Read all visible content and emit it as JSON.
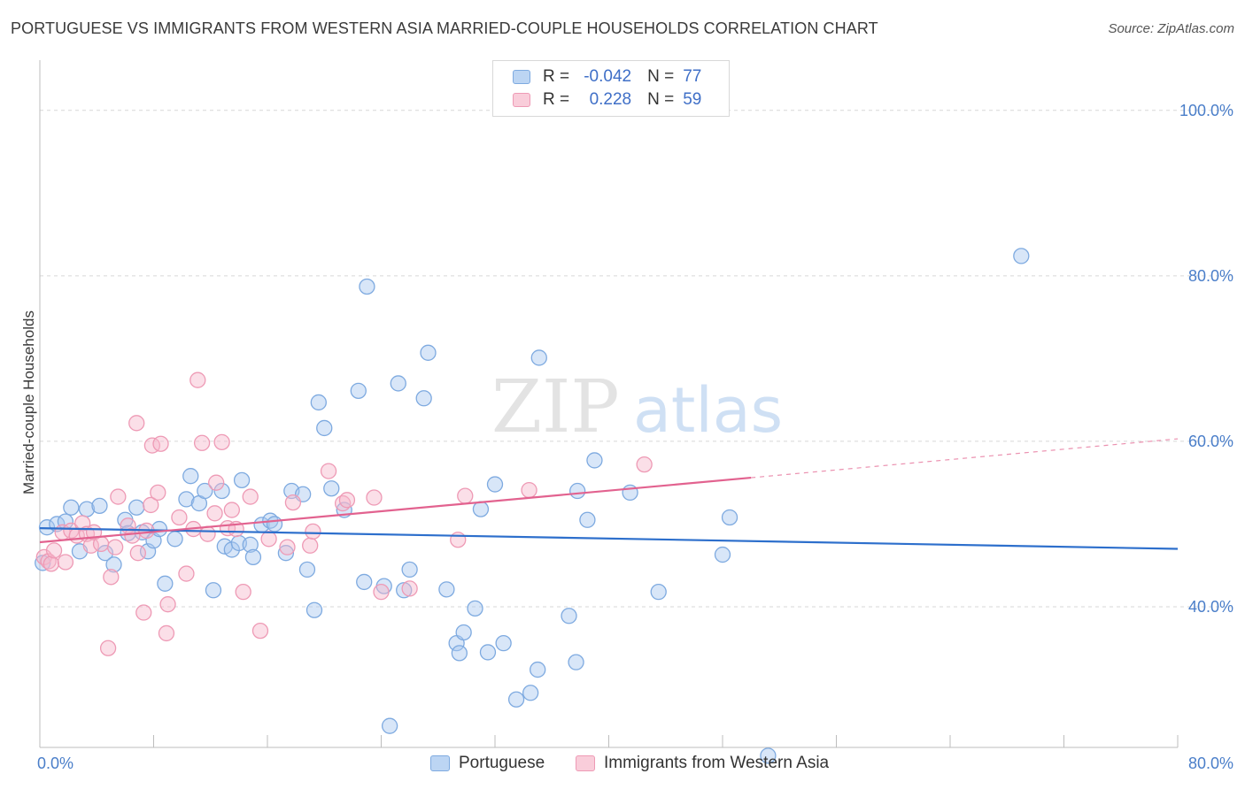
{
  "title": "PORTUGUESE VS IMMIGRANTS FROM WESTERN ASIA MARRIED-COUPLE HOUSEHOLDS CORRELATION CHART",
  "source": "Source: ZipAtlas.com",
  "watermark": {
    "zip": "ZIP",
    "atlas": "atlas"
  },
  "legend_top": {
    "rows": [
      {
        "r_label": "R =",
        "r_value": "-0.042",
        "n_label": "N =",
        "n_value": "77"
      },
      {
        "r_label": "R =",
        "r_value": "0.228",
        "n_label": "N =",
        "n_value": "59"
      }
    ]
  },
  "legend_bottom": {
    "items": [
      {
        "label": "Portuguese"
      },
      {
        "label": "Immigrants from Western Asia"
      }
    ]
  },
  "colors": {
    "blue_fill": "#a9c8ef",
    "blue_stroke": "#7eaae0",
    "blue_line": "#2d6fcc",
    "pink_fill": "#f6b7cb",
    "pink_stroke": "#ee9ab5",
    "pink_line": "#e2628f",
    "grid": "#d7d7d7",
    "axis_text": "#4a7ec9"
  },
  "chart_data": {
    "type": "scatter",
    "title": "PORTUGUESE VS IMMIGRANTS FROM WESTERN ASIA MARRIED-COUPLE HOUSEHOLDS CORRELATION CHART",
    "xlabel": "",
    "ylabel": "Married-couple Households",
    "xlim": [
      0,
      80
    ],
    "ylim": [
      23,
      105
    ],
    "x_tick_labels": [
      "0.0%",
      "80.0%"
    ],
    "y_ticks": [
      40,
      60,
      80,
      100
    ],
    "y_tick_labels": [
      "40.0%",
      "60.0%",
      "80.0%",
      "100.0%"
    ],
    "grid": true,
    "legend_position": "bottom",
    "series": [
      {
        "name": "Portuguese",
        "r": -0.042,
        "n": 77,
        "trend": {
          "x": [
            0,
            80
          ],
          "y": [
            49.5,
            47.0
          ]
        },
        "points": [
          [
            0.2,
            45.3
          ],
          [
            0.5,
            49.6
          ],
          [
            1.2,
            50
          ],
          [
            1.8,
            50.3
          ],
          [
            2.2,
            52
          ],
          [
            2.8,
            46.7
          ],
          [
            3.3,
            51.8
          ],
          [
            4.2,
            52.2
          ],
          [
            4.6,
            46.5
          ],
          [
            5.2,
            45.1
          ],
          [
            6,
            50.5
          ],
          [
            6.2,
            48.9
          ],
          [
            6.8,
            52
          ],
          [
            7.2,
            49
          ],
          [
            7.6,
            46.7
          ],
          [
            8,
            48
          ],
          [
            8.4,
            49.4
          ],
          [
            8.8,
            42.8
          ],
          [
            9.5,
            48.2
          ],
          [
            10.3,
            53
          ],
          [
            10.6,
            55.8
          ],
          [
            11.2,
            52.5
          ],
          [
            11.6,
            54
          ],
          [
            12.2,
            42
          ],
          [
            12.8,
            54
          ],
          [
            13,
            47.3
          ],
          [
            13.5,
            46.9
          ],
          [
            14,
            47.7
          ],
          [
            14.2,
            55.3
          ],
          [
            14.8,
            47.5
          ],
          [
            15,
            46
          ],
          [
            15.6,
            49.9
          ],
          [
            16.2,
            50.4
          ],
          [
            16.5,
            50
          ],
          [
            17.3,
            46.5
          ],
          [
            17.7,
            54
          ],
          [
            18.5,
            53.6
          ],
          [
            18.8,
            44.5
          ],
          [
            19.3,
            39.6
          ],
          [
            19.6,
            64.7
          ],
          [
            20,
            61.6
          ],
          [
            20.5,
            54.3
          ],
          [
            21.4,
            51.7
          ],
          [
            22.4,
            66.1
          ],
          [
            22.8,
            43
          ],
          [
            23,
            78.7
          ],
          [
            24.2,
            42.5
          ],
          [
            24.6,
            25.6
          ],
          [
            25.2,
            67
          ],
          [
            25.6,
            42
          ],
          [
            26,
            44.5
          ],
          [
            27,
            65.2
          ],
          [
            27.3,
            70.7
          ],
          [
            28.6,
            42.1
          ],
          [
            29.3,
            35.6
          ],
          [
            29.5,
            34.4
          ],
          [
            29.8,
            36.9
          ],
          [
            30.6,
            39.8
          ],
          [
            31,
            51.8
          ],
          [
            31.5,
            34.5
          ],
          [
            32,
            54.8
          ],
          [
            32.6,
            35.6
          ],
          [
            33.5,
            28.8
          ],
          [
            34.5,
            29.6
          ],
          [
            35,
            32.4
          ],
          [
            35.1,
            70.1
          ],
          [
            37.2,
            38.9
          ],
          [
            37.7,
            33.3
          ],
          [
            37.8,
            54
          ],
          [
            38.5,
            50.5
          ],
          [
            39,
            57.7
          ],
          [
            41.5,
            53.8
          ],
          [
            43.5,
            41.8
          ],
          [
            48,
            46.3
          ],
          [
            48.5,
            50.8
          ],
          [
            51.2,
            22
          ],
          [
            69,
            82.4
          ]
        ]
      },
      {
        "name": "Immigrants from Western Asia",
        "r": 0.228,
        "n": 59,
        "trend": {
          "x": [
            0,
            50
          ],
          "y": [
            47.8,
            55.6
          ]
        },
        "trend_dashed": {
          "x": [
            50,
            80
          ],
          "y": [
            55.6,
            60.3
          ]
        },
        "points": [
          [
            0.3,
            46
          ],
          [
            0.6,
            45.5
          ],
          [
            0.8,
            45.2
          ],
          [
            1,
            46.8
          ],
          [
            1.6,
            49
          ],
          [
            1.8,
            45.4
          ],
          [
            2.2,
            49.2
          ],
          [
            2.6,
            48.6
          ],
          [
            3,
            50.1
          ],
          [
            3.3,
            48.8
          ],
          [
            3.6,
            47.4
          ],
          [
            3.8,
            49
          ],
          [
            4.3,
            47.6
          ],
          [
            4.8,
            35
          ],
          [
            5,
            43.6
          ],
          [
            5.3,
            47.2
          ],
          [
            5.5,
            53.3
          ],
          [
            6.2,
            49.8
          ],
          [
            6.5,
            48.6
          ],
          [
            6.8,
            62.2
          ],
          [
            6.9,
            46.5
          ],
          [
            7.3,
            39.3
          ],
          [
            7.5,
            49.2
          ],
          [
            7.8,
            52.3
          ],
          [
            7.9,
            59.5
          ],
          [
            8.3,
            53.8
          ],
          [
            8.5,
            59.7
          ],
          [
            8.9,
            36.8
          ],
          [
            9,
            40.3
          ],
          [
            9.8,
            50.8
          ],
          [
            10.3,
            44
          ],
          [
            10.8,
            49.4
          ],
          [
            11.1,
            67.4
          ],
          [
            11.4,
            59.8
          ],
          [
            11.8,
            48.8
          ],
          [
            12.3,
            51.3
          ],
          [
            12.4,
            55
          ],
          [
            12.8,
            59.9
          ],
          [
            13.2,
            49.5
          ],
          [
            13.5,
            51.7
          ],
          [
            13.8,
            49.4
          ],
          [
            14.3,
            41.8
          ],
          [
            14.8,
            53.3
          ],
          [
            15.5,
            37.1
          ],
          [
            16.1,
            48.2
          ],
          [
            17.4,
            47.2
          ],
          [
            17.8,
            52.6
          ],
          [
            19,
            47.4
          ],
          [
            19.2,
            49.1
          ],
          [
            20.3,
            56.4
          ],
          [
            21.3,
            52.5
          ],
          [
            21.6,
            52.9
          ],
          [
            23.5,
            53.2
          ],
          [
            24,
            41.8
          ],
          [
            26,
            42.2
          ],
          [
            29.4,
            48.1
          ],
          [
            29.9,
            53.4
          ],
          [
            34.4,
            54.1
          ],
          [
            42.5,
            57.2
          ]
        ]
      }
    ]
  }
}
